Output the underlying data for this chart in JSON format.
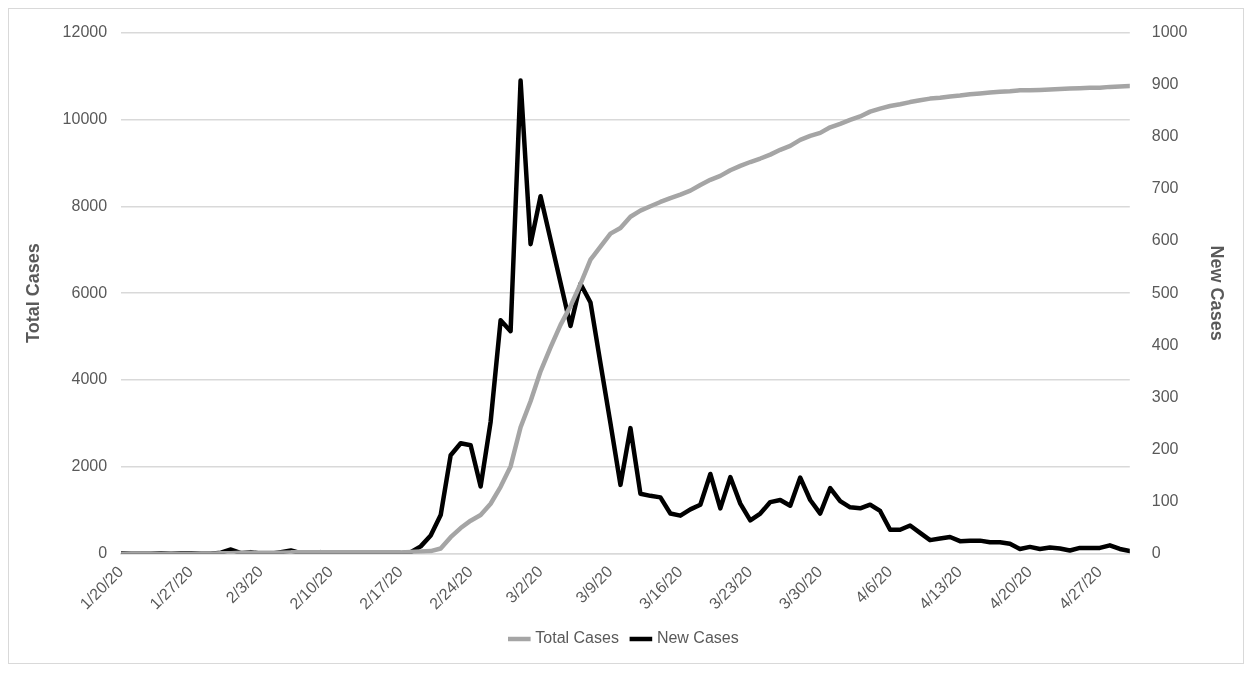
{
  "chart_data": {
    "type": "line",
    "ylabel": "Total Cases",
    "y2label": "New Cases",
    "x": [
      "--01-20",
      "--01-21",
      "--01-22",
      "--01-23",
      "--01-24",
      "--01-25",
      "--01-26",
      "--01-27",
      "--01-28",
      "--01-29",
      "--01-30",
      "--01-31",
      "--02-01",
      "--02-02",
      "--02-03",
      "--02-04",
      "--02-05",
      "--02-06",
      "--02-07",
      "--02-08",
      "--02-09",
      "--02-10",
      "--02-11",
      "--02-12",
      "--02-13",
      "--02-14",
      "--02-15",
      "--02-16",
      "--02-17",
      "--02-18",
      "--02-19",
      "--02-20",
      "--02-21",
      "--02-22",
      "--02-23",
      "--02-24",
      "--02-25",
      "--02-26",
      "--02-27",
      "--02-28",
      "--02-29",
      "--03-01",
      "--03-02",
      "--03-03",
      "--03-04",
      "--03-05",
      "--03-06",
      "--03-07",
      "--03-08",
      "--03-09",
      "--03-10",
      "--03-11",
      "--03-12",
      "--03-13",
      "--03-14",
      "--03-15",
      "--03-16",
      "--03-17",
      "--03-18",
      "--03-19",
      "--03-20",
      "--03-21",
      "--03-22",
      "--03-23",
      "--03-24",
      "--03-25",
      "--03-26",
      "--03-27",
      "--03-28",
      "--03-29",
      "--03-30",
      "--03-31",
      "--04-01",
      "--04-02",
      "--04-03",
      "--04-04",
      "--04-05",
      "--04-06",
      "--04-07",
      "--04-08",
      "--04-09",
      "--04-10",
      "--04-11",
      "--04-12",
      "--04-13",
      "--04-14",
      "--04-15",
      "--04-16",
      "--04-17",
      "--04-18",
      "--04-19",
      "--04-20",
      "--04-21",
      "--04-22",
      "--04-23",
      "--04-24",
      "--04-25",
      "--04-26",
      "--04-27",
      "--04-28",
      "--04-29",
      "--04-30"
    ],
    "series": [
      {
        "name": "Total Cases",
        "color": "#a5a5a5",
        "values": [
          0,
          0,
          0,
          0,
          0,
          0,
          0,
          0,
          0,
          0,
          10,
          10,
          20,
          20,
          20,
          20,
          20,
          30,
          30,
          30,
          30,
          30,
          30,
          30,
          30,
          30,
          30,
          30,
          30,
          40,
          50,
          60,
          120,
          380,
          590,
          760,
          890,
          1150,
          1540,
          2010,
          2910,
          3510,
          4200,
          4750,
          5270,
          5700,
          6210,
          6770,
          7070,
          7370,
          7500,
          7760,
          7900,
          8000,
          8100,
          8190,
          8270,
          8360,
          8490,
          8610,
          8700,
          8830,
          8930,
          9020,
          9100,
          9190,
          9300,
          9390,
          9530,
          9620,
          9690,
          9820,
          9900,
          9990,
          10070,
          10180,
          10250,
          10310,
          10350,
          10400,
          10440,
          10480,
          10500,
          10530,
          10550,
          10580,
          10600,
          10620,
          10640,
          10650,
          10670,
          10670,
          10680,
          10690,
          10700,
          10710,
          10720,
          10730,
          10730,
          10750,
          10760,
          10770
        ]
      },
      {
        "name": "New Cases",
        "color": "#000000",
        "axis": "y2",
        "values": [
          1,
          0,
          0,
          0,
          1,
          0,
          1,
          1,
          0,
          0,
          2,
          8,
          1,
          3,
          0,
          0,
          3,
          6,
          1,
          0,
          3,
          0,
          1,
          0,
          0,
          0,
          0,
          1,
          1,
          3,
          14,
          35,
          74,
          189,
          212,
          208,
          129,
          253,
          448,
          427,
          908,
          594,
          686,
          603,
          520,
          437,
          518,
          482,
          365,
          250,
          132,
          241,
          115,
          111,
          108,
          77,
          73,
          85,
          94,
          153,
          87,
          147,
          96,
          64,
          77,
          99,
          103,
          92,
          146,
          103,
          77,
          126,
          101,
          89,
          87,
          94,
          82,
          46,
          46,
          54,
          40,
          26,
          29,
          32,
          24,
          25,
          25,
          22,
          22,
          19,
          9,
          13,
          9,
          12,
          10,
          6,
          11,
          11,
          11,
          16,
          9,
          5
        ]
      }
    ],
    "xlim": [
      "--01-20",
      "--04-30"
    ],
    "xticks": [
      {
        "value": "--01-20",
        "label": "1/20/20"
      },
      {
        "value": "--01-27",
        "label": "1/27/20"
      },
      {
        "value": "--02-03",
        "label": "2/3/20"
      },
      {
        "value": "--02-10",
        "label": "2/10/20"
      },
      {
        "value": "--02-17",
        "label": "2/17/20"
      },
      {
        "value": "--02-24",
        "label": "2/24/20"
      },
      {
        "value": "--03-02",
        "label": "3/2/20"
      },
      {
        "value": "--03-09",
        "label": "3/9/20"
      },
      {
        "value": "--03-16",
        "label": "3/16/20"
      },
      {
        "value": "--03-23",
        "label": "3/23/20"
      },
      {
        "value": "--03-30",
        "label": "3/30/20"
      },
      {
        "value": "--04-06",
        "label": "4/6/20"
      },
      {
        "value": "--04-13",
        "label": "4/13/20"
      },
      {
        "value": "--04-20",
        "label": "4/20/20"
      },
      {
        "value": "--04-27",
        "label": "4/27/20"
      }
    ],
    "ylim": [
      0,
      12000
    ],
    "yticks": [
      0,
      2000,
      4000,
      6000,
      8000,
      10000,
      12000
    ],
    "y2lim": [
      0,
      1000
    ],
    "y2ticks": [
      0,
      100,
      200,
      300,
      400,
      500,
      600,
      700,
      800,
      900,
      1000
    ],
    "grid": "y",
    "legend": "bottom",
    "marker": "none",
    "line_style": "solid"
  }
}
